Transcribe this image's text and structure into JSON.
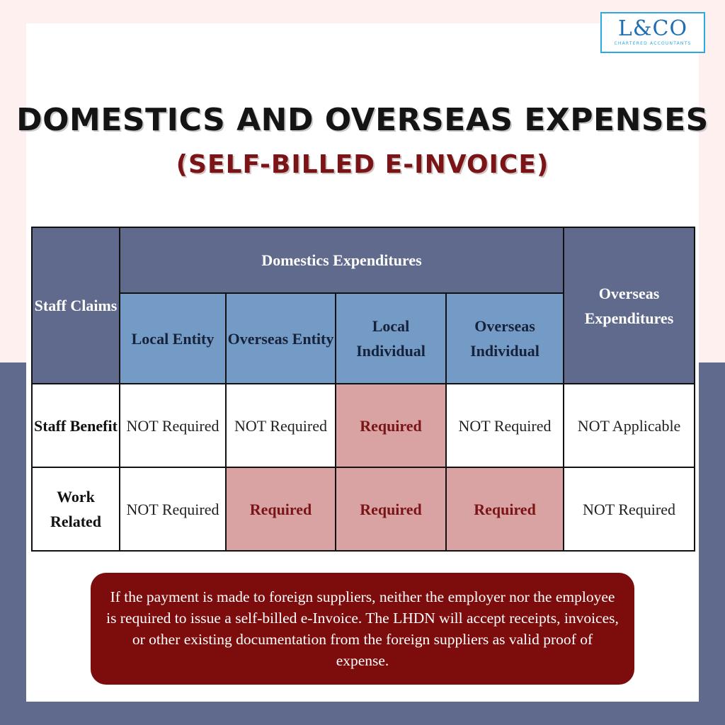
{
  "logo": {
    "mark": "L&CO",
    "tagline": "CHARTERED ACCOUNTANTS"
  },
  "title": "DOMESTICS AND OVERSEAS EXPENSES",
  "subtitle": "(SELF-BILLED E-INVOICE)",
  "table": {
    "corner_header": "Staff Claims",
    "domestic_header": "Domestics Expenditures",
    "overseas_header": "Overseas Expenditures",
    "sub_headers": [
      "Local Entity",
      "Overseas Entity",
      "Local Individual",
      "Overseas Individual"
    ],
    "rows": [
      {
        "label": "Staff Benefit",
        "cells": [
          "NOT Required",
          "NOT Required",
          "Required",
          "NOT Required",
          "NOT Applicable"
        ]
      },
      {
        "label": "Work Related",
        "cells": [
          "NOT Required",
          "Required",
          "Required",
          "Required",
          "NOT Required"
        ]
      }
    ]
  },
  "note": "If the payment is made to foreign suppliers, neither the employer nor the employee is required to issue a self-billed e-Invoice. The LHDN will accept receipts, invoices, or other existing documentation from the foreign suppliers as valid proof of expense.",
  "colors": {
    "header_dark": "#5f6a8d",
    "header_light": "#739bc5",
    "required_fill": "#d9a3a3",
    "accent_red": "#7b1416",
    "note_background": "#7d0c0c",
    "logo_blue": "#29a9e1"
  }
}
